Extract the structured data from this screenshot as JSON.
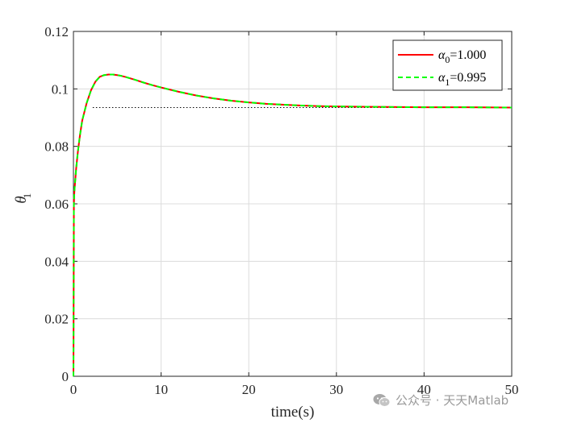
{
  "chart_data": {
    "type": "line",
    "xlabel": "time(s)",
    "ylabel": "θ",
    "ylabel_sub": "1",
    "xlim": [
      0,
      50
    ],
    "ylim": [
      0,
      0.12
    ],
    "xticks": [
      0,
      10,
      20,
      30,
      40,
      50
    ],
    "xtick_labels": [
      "0",
      "10",
      "20",
      "30",
      "40",
      "50"
    ],
    "yticks": [
      0,
      0.02,
      0.04,
      0.06,
      0.08,
      0.1,
      0.12
    ],
    "ytick_labels": [
      "0",
      "0.02",
      "0.04",
      "0.06",
      "0.08",
      "0.1",
      "0.12"
    ],
    "grid": true,
    "legend_position": "top-right",
    "reference_line": {
      "y": 0.0935,
      "x_start": 2.2,
      "x_end": 50,
      "style": "dotted",
      "color": "#000000"
    },
    "series": [
      {
        "label": "α",
        "label_sub": "0",
        "label_value": "=1.000",
        "color": "#ff0000",
        "style": "solid",
        "x": [
          0,
          0.05,
          0.1,
          0.2,
          0.3,
          0.5,
          0.75,
          1,
          1.5,
          2,
          2.5,
          3,
          3.5,
          4,
          4.5,
          5,
          5.5,
          6,
          7,
          8,
          9,
          10,
          12,
          14,
          16,
          18,
          20,
          22,
          24,
          26,
          28,
          30,
          33,
          36,
          40,
          45,
          50
        ],
        "y": [
          0,
          0.06,
          0.064,
          0.068,
          0.072,
          0.078,
          0.084,
          0.089,
          0.095,
          0.0995,
          0.1025,
          0.1042,
          0.1048,
          0.105,
          0.105,
          0.1048,
          0.1045,
          0.1041,
          0.1032,
          0.1022,
          0.1013,
          0.1005,
          0.099,
          0.0977,
          0.0967,
          0.0959,
          0.0953,
          0.0948,
          0.0945,
          0.0942,
          0.094,
          0.0939,
          0.0938,
          0.0937,
          0.0936,
          0.0936,
          0.0935
        ]
      },
      {
        "label": "α",
        "label_sub": "1",
        "label_value": "=0.995",
        "color": "#00ff00",
        "style": "dashed",
        "x": [
          0,
          0.05,
          0.1,
          0.2,
          0.3,
          0.5,
          0.75,
          1,
          1.5,
          2,
          2.5,
          3,
          3.5,
          4,
          4.5,
          5,
          5.5,
          6,
          7,
          8,
          9,
          10,
          12,
          14,
          16,
          18,
          20,
          22,
          24,
          26,
          28,
          30,
          33,
          36,
          40,
          45,
          50
        ],
        "y": [
          0,
          0.06,
          0.064,
          0.068,
          0.072,
          0.078,
          0.084,
          0.089,
          0.095,
          0.0995,
          0.1025,
          0.1042,
          0.1048,
          0.105,
          0.105,
          0.1048,
          0.1045,
          0.1041,
          0.1032,
          0.1022,
          0.1013,
          0.1005,
          0.099,
          0.0977,
          0.0967,
          0.0959,
          0.0953,
          0.0948,
          0.0945,
          0.0942,
          0.094,
          0.0939,
          0.0938,
          0.0937,
          0.0936,
          0.0936,
          0.0935
        ]
      }
    ]
  },
  "watermark": {
    "text": "公众号 · 天天Matlab",
    "icon": "wechat-icon"
  }
}
